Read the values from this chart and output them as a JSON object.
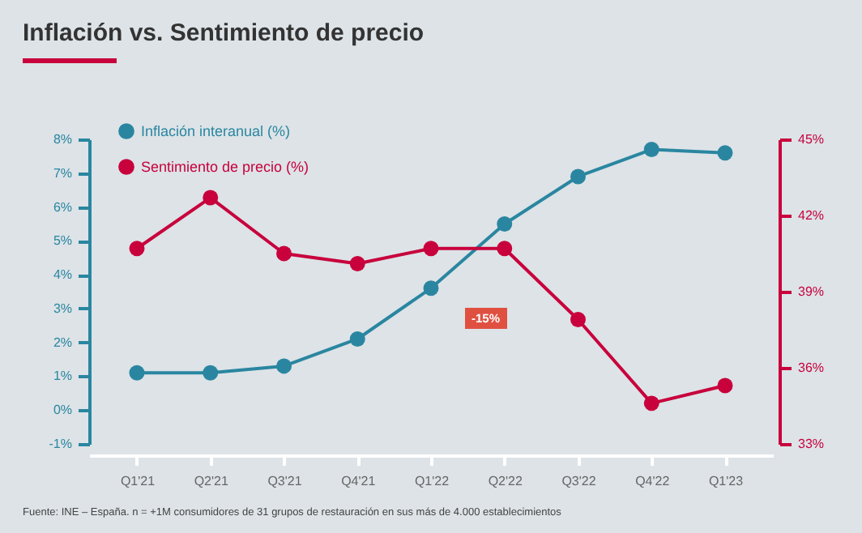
{
  "chart_data": {
    "type": "line",
    "title": "Inflación vs. Sentimiento de precio",
    "categories": [
      "Q1'21",
      "Q2'21",
      "Q3'21",
      "Q4'21",
      "Q1'22",
      "Q2'22",
      "Q3'22",
      "Q4'22",
      "Q1'23"
    ],
    "series": [
      {
        "name": "Inflación interanual (%)",
        "color": "#2a86a0",
        "values": [
          1.1,
          1.1,
          1.3,
          2.1,
          3.6,
          5.5,
          6.9,
          7.7,
          7.6
        ]
      },
      {
        "name": "Sentimiento de precio (%)",
        "color": "#c8003c",
        "axis": "y2",
        "values": [
          40.7,
          42.7,
          40.5,
          40.1,
          40.7,
          40.7,
          37.9,
          34.6,
          35.3
        ]
      }
    ],
    "ylim": [
      -1,
      8
    ],
    "yticks": [
      {
        "value": -1,
        "label": "-1%"
      },
      {
        "value": 0,
        "label": "0%"
      },
      {
        "value": 1,
        "label": "1%"
      },
      {
        "value": 2,
        "label": "2%"
      },
      {
        "value": 3,
        "label": "3%"
      },
      {
        "value": 4,
        "label": "4%"
      },
      {
        "value": 5,
        "label": "5%"
      },
      {
        "value": 6,
        "label": "6%"
      },
      {
        "value": 7,
        "label": "7%"
      },
      {
        "value": 8,
        "label": "8%"
      }
    ],
    "y2lim": [
      33,
      45
    ],
    "y2ticks": [
      {
        "value": 33,
        "label": "33%"
      },
      {
        "value": 36,
        "label": "36%"
      },
      {
        "value": 39,
        "label": "39%"
      },
      {
        "value": 42,
        "label": "42%"
      },
      {
        "value": 45,
        "label": "45%"
      }
    ],
    "grid": false,
    "legend": "top left",
    "marker": "circle",
    "annotations": [
      "-15%",
      "Fuente: INE – España. n = +1M consumidores de 31 grupos de restauración en sus más de 4.000 establecimientos"
    ]
  }
}
